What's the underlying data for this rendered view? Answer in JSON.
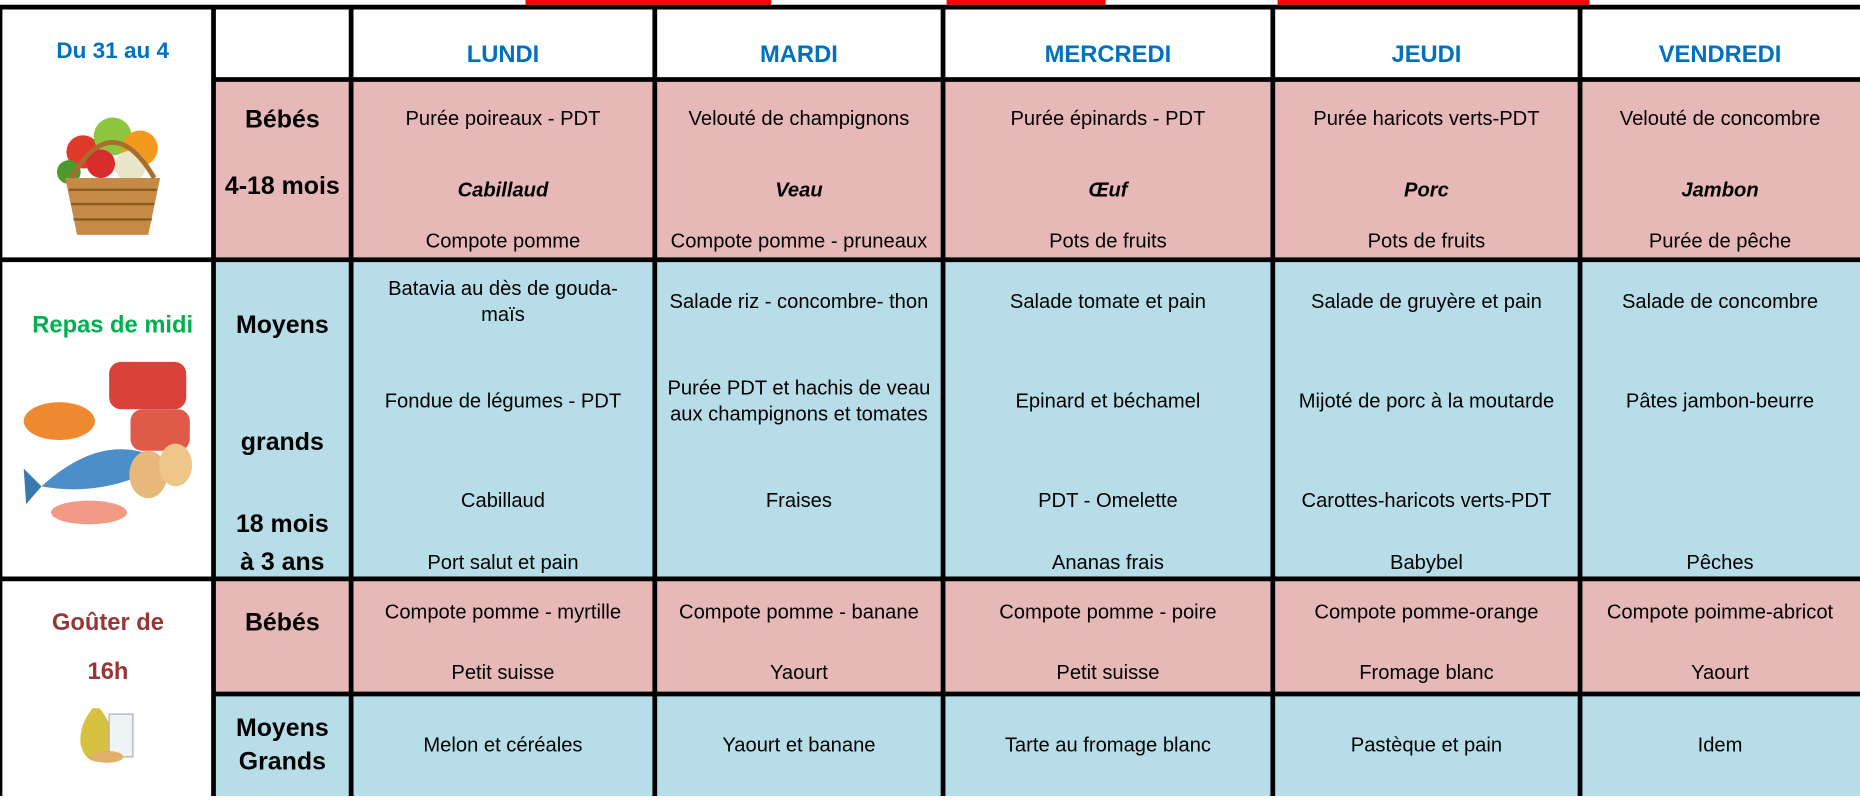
{
  "header": {
    "period": "Du 31 au 4",
    "days": [
      "LUNDI",
      "MARDI",
      "MERCREDI",
      "JEUDI",
      "VENDREDI"
    ]
  },
  "lunch": {
    "label": "Repas de midi",
    "groups": [
      {
        "label": [
          "Bébés",
          "4-18 mois"
        ],
        "days": [
          [
            [
              "Purée poireaux - PDT"
            ],
            [
              "Cabillaud"
            ],
            [
              "Compote pomme"
            ]
          ],
          [
            [
              "Velouté de champignons"
            ],
            [
              "Veau"
            ],
            [
              "Compote pomme - pruneaux"
            ]
          ],
          [
            [
              "Purée épinards - PDT"
            ],
            [
              "Œuf"
            ],
            [
              "Pots de fruits"
            ]
          ],
          [
            [
              "Purée haricots verts-PDT"
            ],
            [
              "Porc"
            ],
            [
              "Pots de fruits"
            ]
          ],
          [
            [
              "Velouté de concombre"
            ],
            [
              "Jambon"
            ],
            [
              "Purée de pêche"
            ]
          ]
        ]
      },
      {
        "label": [
          "Moyens",
          "grands",
          "18 mois",
          "à 3 ans"
        ],
        "days": [
          [
            [
              "Batavia au dès de gouda-",
              "maïs"
            ],
            [
              "Fondue de légumes - PDT"
            ],
            [
              "Cabillaud"
            ],
            [
              "Port salut et pain"
            ]
          ],
          [
            [
              "Salade riz - concombre- thon"
            ],
            [
              "Purée PDT et hachis de veau",
              "aux champignons et tomates"
            ],
            [
              "Fraises"
            ],
            null
          ],
          [
            [
              "Salade tomate et pain"
            ],
            [
              "Epinard et béchamel"
            ],
            [
              "PDT - Omelette"
            ],
            [
              "Ananas frais"
            ]
          ],
          [
            [
              "Salade de gruyère et pain"
            ],
            [
              "Mijoté de porc à la moutarde"
            ],
            [
              "Carottes-haricots verts-PDT"
            ],
            [
              "Babybel"
            ]
          ],
          [
            [
              "Salade de concombre"
            ],
            [
              "Pâtes jambon-beurre"
            ],
            null,
            [
              "Pêches"
            ]
          ]
        ]
      }
    ]
  },
  "gouter": {
    "label": [
      "Goûter de",
      "16h"
    ],
    "groups": [
      {
        "label": [
          "Bébés"
        ],
        "days": [
          [
            [
              "Compote pomme - myrtille"
            ],
            [
              "Petit suisse"
            ]
          ],
          [
            [
              "Compote pomme - banane"
            ],
            [
              "Yaourt"
            ]
          ],
          [
            [
              "Compote pomme - poire"
            ],
            [
              "Petit suisse"
            ]
          ],
          [
            [
              "Compote pomme-orange"
            ],
            [
              "Fromage blanc"
            ]
          ],
          [
            [
              "Compote poimme-abricot"
            ],
            [
              "Yaourt"
            ]
          ]
        ]
      },
      {
        "label": [
          "Moyens",
          "Grands"
        ],
        "days": [
          [
            [
              "Melon et céréales"
            ]
          ],
          [
            [
              "Yaourt et banane"
            ]
          ],
          [
            [
              "Tarte au fromage blanc"
            ]
          ],
          [
            [
              "Pastèque et pain"
            ]
          ],
          [
            [
              "Idem"
            ]
          ]
        ]
      }
    ]
  }
}
